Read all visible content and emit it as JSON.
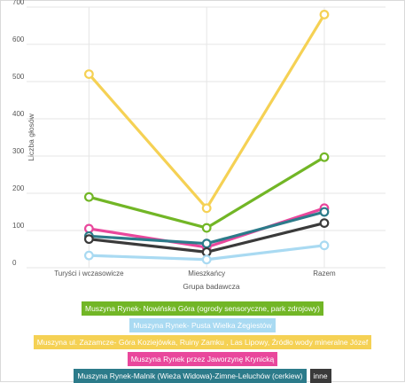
{
  "chart_data": {
    "type": "line",
    "title": "",
    "xlabel": "Grupa badawcza",
    "ylabel": "Liczba głosów",
    "categories": [
      "Turyści i wczasowicze",
      "Mieszkańcy",
      "Razem"
    ],
    "ylim": [
      0,
      700
    ],
    "yticks": [
      0,
      100,
      200,
      300,
      400,
      500,
      600,
      700
    ],
    "grid": true,
    "legend_position": "bottom",
    "series": [
      {
        "name": "Muszyna ul. Zazamcze- Góra Koziejówka, Ruiny Zamku , Las Lipowy, Źródło wody mineralne Józef",
        "values": [
          520,
          160,
          680
        ],
        "color": "#f5d154"
      },
      {
        "name": "Muszyna Rynek- Nowińska Góra (ogrody sensoryczne, park zdrojowy)",
        "values": [
          190,
          107,
          297
        ],
        "color": "#72b626"
      },
      {
        "name": "Muszyna Rynek przez Jaworzynę Krynicką",
        "values": [
          105,
          55,
          160
        ],
        "color": "#e9479c"
      },
      {
        "name": "Muszyna Rynek-Malnik (Wieża Widowa)-Zimne-Leluchów (cerkiew)",
        "values": [
          85,
          65,
          150
        ],
        "color": "#2c7b8a"
      },
      {
        "name": "inne",
        "values": [
          77,
          42,
          120
        ],
        "color": "#3a3a3a"
      },
      {
        "name": "Muszyna Rynek- Pusta Wielka Żegiestów",
        "values": [
          33,
          22,
          60
        ],
        "color": "#a9daf2"
      }
    ],
    "legend_rows": [
      [
        {
          "label": "Muszyna Rynek- Nowińska Góra (ogrody sensoryczne, park zdrojowy)",
          "color": "#72b626"
        }
      ],
      [
        {
          "label": "Muszyna Rynek- Pusta Wielka Żegiestów",
          "color": "#a9daf2"
        }
      ],
      [
        {
          "label": "Muszyna ul. Zazamcze- Góra Koziejówka, Ruiny Zamku , Las Lipowy, Źródło wody mineralne Józef",
          "color": "#f5d154"
        }
      ],
      [
        {
          "label": "Muszyna Rynek przez Jaworzynę Krynicką",
          "color": "#e9479c"
        }
      ],
      [
        {
          "label": "Muszyna Rynek-Malnik (Wieża Widowa)-Zimne-Leluchów (cerkiew)",
          "color": "#2c7b8a"
        },
        {
          "label": "inne",
          "color": "#3a3a3a"
        }
      ]
    ]
  }
}
